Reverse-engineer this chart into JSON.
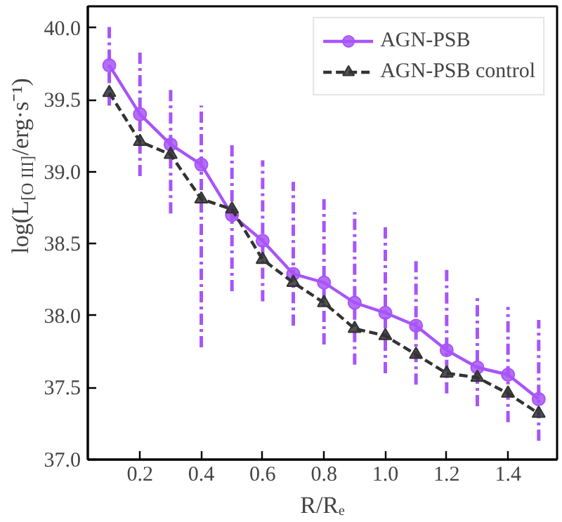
{
  "chart_data": {
    "type": "line",
    "xlabel": "R/Rₑ",
    "ylabel": "log(L$_{[O III]}$/erg·s⁻¹)",
    "x": [
      0.1,
      0.2,
      0.3,
      0.4,
      0.5,
      0.6,
      0.7,
      0.8,
      0.9,
      1.0,
      1.1,
      1.2,
      1.3,
      1.4,
      1.5
    ],
    "series": [
      {
        "name": "AGN-PSB",
        "color": "#a855f7",
        "marker": "circle",
        "line_style": "solid",
        "values": [
          39.74,
          39.4,
          39.19,
          39.05,
          38.7,
          38.52,
          38.29,
          38.23,
          38.09,
          38.02,
          37.93,
          37.76,
          37.64,
          37.59,
          37.42
        ],
        "errors": [
          [
            39.46,
            40.02
          ],
          [
            38.97,
            39.84
          ],
          [
            38.71,
            39.58
          ],
          [
            37.78,
            39.46
          ],
          [
            38.17,
            39.2
          ],
          [
            38.1,
            39.08
          ],
          [
            37.93,
            38.93
          ],
          [
            37.8,
            38.81
          ],
          [
            37.66,
            38.72
          ],
          [
            37.6,
            38.63
          ],
          [
            37.52,
            38.4
          ],
          [
            37.46,
            38.34
          ],
          [
            37.37,
            38.15
          ],
          [
            37.26,
            38.06
          ],
          [
            37.13,
            37.97
          ]
        ]
      },
      {
        "name": "AGN-PSB control",
        "color": "#333333",
        "marker": "triangle",
        "line_style": "dashed",
        "values": [
          39.55,
          39.21,
          39.12,
          38.81,
          38.74,
          38.39,
          38.23,
          38.09,
          37.91,
          37.86,
          37.73,
          37.6,
          37.57,
          37.46,
          37.32
        ]
      }
    ],
    "xlim": [
      0.03,
      1.56
    ],
    "ylim": [
      37.0,
      40.15
    ],
    "xticks": [
      0.2,
      0.4,
      0.6,
      0.8,
      {
        "value": 1.0,
        "label": "1.0"
      },
      1.2,
      1.4
    ],
    "yticks": [
      {
        "value": 37.0,
        "label": "37.0"
      },
      37.5,
      {
        "value": 38.0,
        "label": "38.0"
      },
      38.5,
      {
        "value": 39.0,
        "label": "39.0"
      },
      39.5,
      {
        "value": 40.0,
        "label": "40.0"
      }
    ],
    "legend": "top right",
    "grid": false
  }
}
